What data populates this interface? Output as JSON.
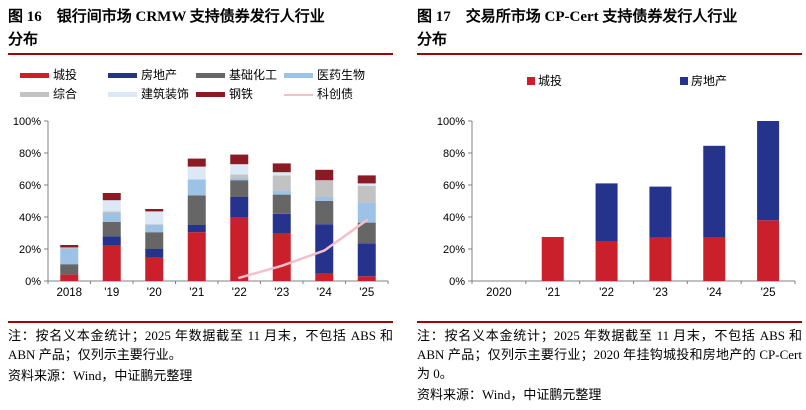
{
  "figure_left": {
    "title": "图 16　银行间市场 CRMW 支持债券发行人行业分布",
    "note": "注：按名义本金统计；2025 年数据截至 11 月末，不包括 ABS 和 ABN 产品；仅列示主要行业。",
    "source": "资料来源：Wind，中证鹏元整理"
  },
  "figure_right": {
    "title": "图 17　交易所市场 CP-Cert 支持债券发行人行业分布",
    "note": "注：按名义本金统计；2025 年数据截至 11 月末，不包括 ABS 和 ABN 产品；仅列示主要行业；2020 年挂钩城投和房地产的 CP-Cert 为 0。",
    "source": "资料来源：Wind，中证鹏元整理"
  },
  "colors": {
    "title_rule": "#A00505",
    "axis": "#808080",
    "city_red": "#C9202C",
    "realestate_navy": "#26338C",
    "chem_gray": "#666666",
    "pharma_blue": "#9CC2E5",
    "conglomerate_gray": "#C2C2C2",
    "construction_paleblue": "#DCE8F5",
    "steel_darkred": "#8B1A24",
    "scitech_pink": "#F5BFC7"
  },
  "chart_data": [
    {
      "type": "bar",
      "stacked": true,
      "title": "银行间市场 CRMW 支持债券发行人行业分布",
      "categories": [
        "2018",
        "'19",
        "'20",
        "'21",
        "'22",
        "'23",
        "'24",
        "'25"
      ],
      "series": [
        {
          "name": "城投",
          "color": "#C9202C",
          "values": [
            4,
            22.5,
            14.5,
            30.5,
            39.5,
            30,
            4.5,
            3
          ]
        },
        {
          "name": "房地产",
          "color": "#26338C",
          "values": [
            0,
            5.5,
            5.5,
            4.5,
            13,
            12,
            31,
            20.5
          ]
        },
        {
          "name": "基础化工",
          "color": "#666666",
          "values": [
            6.5,
            9,
            10.5,
            18.5,
            10.5,
            12,
            14.5,
            13
          ]
        },
        {
          "name": "医药生物",
          "color": "#9CC2E5",
          "values": [
            9.5,
            5.5,
            4.5,
            10,
            1.5,
            2.5,
            2.5,
            12.5
          ]
        },
        {
          "name": "综合",
          "color": "#C2C2C2",
          "values": [
            1,
            1,
            0.5,
            0,
            2,
            9.5,
            10.5,
            10.5
          ]
        },
        {
          "name": "建筑装饰",
          "color": "#DCE8F5",
          "values": [
            0,
            7,
            8,
            8,
            6.5,
            2,
            0,
            1.5
          ]
        },
        {
          "name": "钢铁",
          "color": "#8B1A24",
          "values": [
            1.5,
            4.5,
            1.5,
            5,
            6,
            5.5,
            6.5,
            5
          ]
        }
      ],
      "line_series": {
        "name": "科创债",
        "color": "#F5BFC7",
        "values": [
          null,
          null,
          null,
          null,
          2,
          9.5,
          19,
          38
        ]
      },
      "ylim": [
        0,
        100
      ],
      "ytick_step": 20,
      "ytick_format": "percent",
      "grid": false,
      "legend_position": "top"
    },
    {
      "type": "bar",
      "stacked": true,
      "title": "交易所市场 CP-Cert 支持债券发行人行业分布",
      "categories": [
        "2020",
        "'21",
        "'22",
        "'23",
        "'24",
        "'25"
      ],
      "series": [
        {
          "name": "城投",
          "color": "#C9202C",
          "values": [
            0,
            27.5,
            25,
            27,
            27.5,
            38
          ]
        },
        {
          "name": "房地产",
          "color": "#26338C",
          "values": [
            0,
            0,
            36,
            32,
            57,
            62
          ]
        }
      ],
      "ylim": [
        0,
        100
      ],
      "ytick_step": 20,
      "ytick_format": "percent",
      "grid": false,
      "legend_position": "top"
    }
  ]
}
